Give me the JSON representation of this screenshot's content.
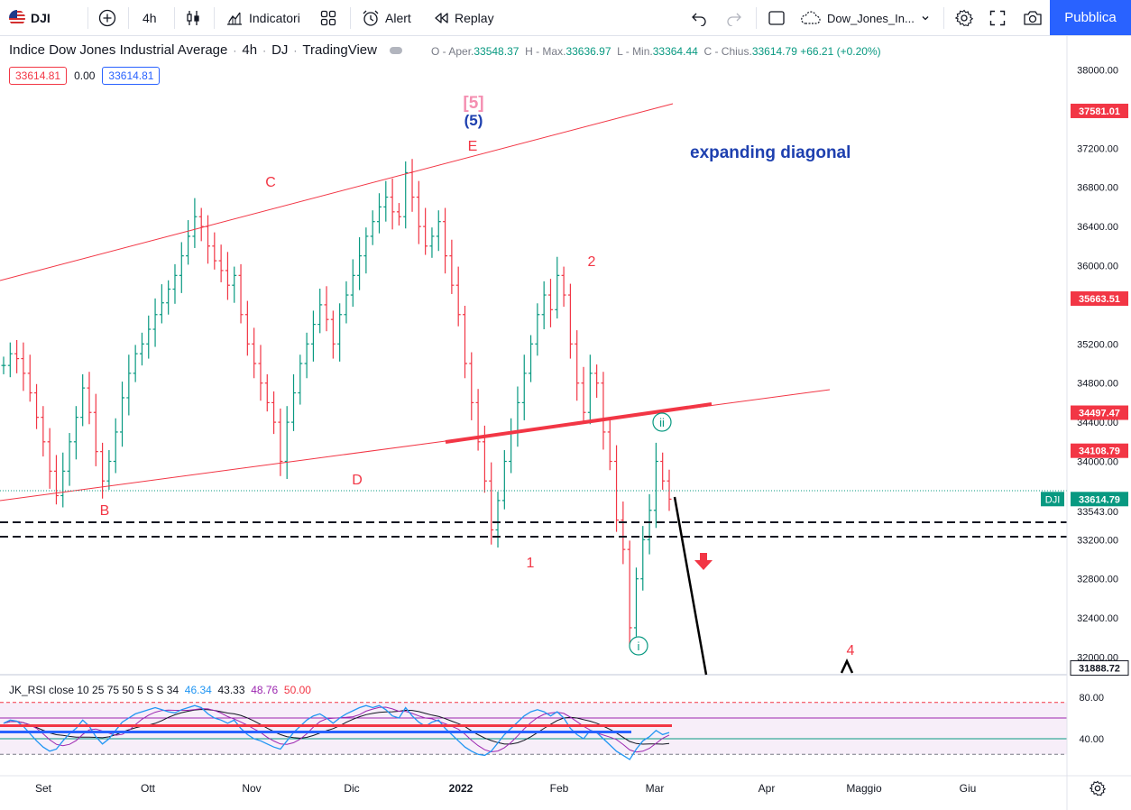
{
  "toolbar": {
    "symbol": "DJI",
    "interval": "4h",
    "indicators_label": "Indicatori",
    "alert_label": "Alert",
    "replay_label": "Replay",
    "layout_name": "Dow_Jones_In...",
    "publish_label": "Pubblica"
  },
  "legend": {
    "title": "Indice Dow Jones Industrial Average",
    "interval": "4h",
    "exchange": "DJ",
    "source": "TradingView",
    "ohlc": {
      "open_label": "O - Aper.",
      "open": "33548.37",
      "high_label": "H - Max.",
      "high": "33636.97",
      "low_label": "L - Min.",
      "low": "33364.44",
      "close_label": "C - Chius.",
      "close": "33614.79",
      "change": "+66.21 (+0.20%)"
    },
    "bid": "33614.81",
    "spread": "0.00",
    "ask": "33614.81"
  },
  "rsi_legend": {
    "name": "JK_RSI close 10 25 75 50 5 S S 34",
    "v1": "46.34",
    "v2": "43.33",
    "v3": "48.76",
    "v4": "50.00"
  },
  "chart_data": {
    "type": "candlestick",
    "symbol": "DJI",
    "price_axis": {
      "ticks": [
        "38000.00",
        "37200.00",
        "36800.00",
        "36400.00",
        "36000.00",
        "35200.00",
        "34800.00",
        "34400.00",
        "34000.00",
        "33200.00",
        "32800.00",
        "32400.00",
        "32000.00"
      ],
      "labels": [
        {
          "value": 37581.01,
          "text": "37581.01",
          "color": "#f23645"
        },
        {
          "value": 35663.51,
          "text": "35663.51",
          "color": "#f23645"
        },
        {
          "value": 34497.47,
          "text": "34497.47",
          "color": "#f23645"
        },
        {
          "value": 34108.79,
          "text": "34108.79",
          "color": "#f23645"
        },
        {
          "value": 33614.79,
          "text": "33614.79",
          "color": "#089981",
          "tag": "DJI"
        },
        {
          "value": 31888.72,
          "text": "31888.72",
          "color": "#131722"
        }
      ],
      "hidden_label": "33543.00",
      "ylim": [
        31860,
        38200
      ]
    },
    "time_axis": [
      "Set",
      "Ott",
      "Nov",
      "Dic",
      "2022",
      "Feb",
      "Mar",
      "Apr",
      "Maggio",
      "Giu"
    ],
    "closes": [
      34980,
      35100,
      35050,
      34900,
      34700,
      34450,
      34200,
      33900,
      33650,
      33900,
      34200,
      34450,
      34750,
      34500,
      34100,
      33800,
      34000,
      34300,
      34650,
      34900,
      35100,
      35200,
      35350,
      35500,
      35620,
      35760,
      35900,
      36100,
      36300,
      36500,
      36400,
      36200,
      36050,
      35950,
      35800,
      35900,
      35500,
      35200,
      35000,
      34800,
      34600,
      34400,
      34000,
      34400,
      34700,
      35000,
      35200,
      35400,
      35600,
      35450,
      35200,
      35500,
      35700,
      35900,
      36100,
      36300,
      36450,
      36600,
      36700,
      36550,
      36500,
      36950,
      36700,
      36400,
      36200,
      36300,
      36450,
      36100,
      35800,
      35500,
      35000,
      34600,
      34200,
      33800,
      33300,
      33600,
      34000,
      34300,
      34600,
      34900,
      35200,
      35500,
      35700,
      35550,
      35900,
      35700,
      35200,
      34800,
      34500,
      34900,
      34800,
      34300,
      34000,
      33400,
      33100,
      32300,
      32800,
      33200,
      33500,
      34000,
      33800,
      33614
    ],
    "annotations": [
      {
        "text": "[5]",
        "color": "#f48fb1"
      },
      {
        "text": "(5)",
        "color": "#1e40af"
      },
      {
        "text": "E",
        "color": "#f23645"
      },
      {
        "text": "C",
        "color": "#f23645"
      },
      {
        "text": "D",
        "color": "#f23645"
      },
      {
        "text": "B",
        "color": "#f23645"
      },
      {
        "text": "1",
        "color": "#f23645"
      },
      {
        "text": "2",
        "color": "#f23645"
      },
      {
        "text": "4",
        "color": "#f23645"
      },
      {
        "text": "ii",
        "color": "#089981"
      },
      {
        "text": "i",
        "color": "#089981"
      },
      {
        "text": "expanding diagonal",
        "color": "#1e40af"
      }
    ],
    "levels": [
      33250,
      33150
    ]
  },
  "rsi": {
    "axis_labels": [
      "80.00",
      "40.00"
    ],
    "ylim": [
      18,
      82
    ],
    "upper_band": 75,
    "lower_band": 25,
    "mid_line": 60,
    "low_line": 40,
    "reference": 50,
    "values": [
      55,
      58,
      57,
      52,
      45,
      38,
      32,
      28,
      30,
      38,
      45,
      50,
      58,
      52,
      42,
      35,
      40,
      48,
      56,
      60,
      64,
      66,
      68,
      70,
      68,
      66,
      65,
      68,
      70,
      72,
      70,
      64,
      60,
      58,
      55,
      58,
      50,
      44,
      40,
      38,
      35,
      32,
      30,
      38,
      46,
      52,
      58,
      62,
      64,
      60,
      55,
      60,
      64,
      67,
      70,
      72,
      70,
      72,
      68,
      62,
      60,
      70,
      62,
      56,
      52,
      56,
      58,
      50,
      44,
      38,
      32,
      28,
      25,
      24,
      28,
      36,
      44,
      50,
      56,
      62,
      66,
      68,
      66,
      62,
      66,
      60,
      50,
      44,
      40,
      48,
      46,
      40,
      34,
      28,
      24,
      20,
      30,
      38,
      42,
      48,
      44,
      46
    ]
  }
}
